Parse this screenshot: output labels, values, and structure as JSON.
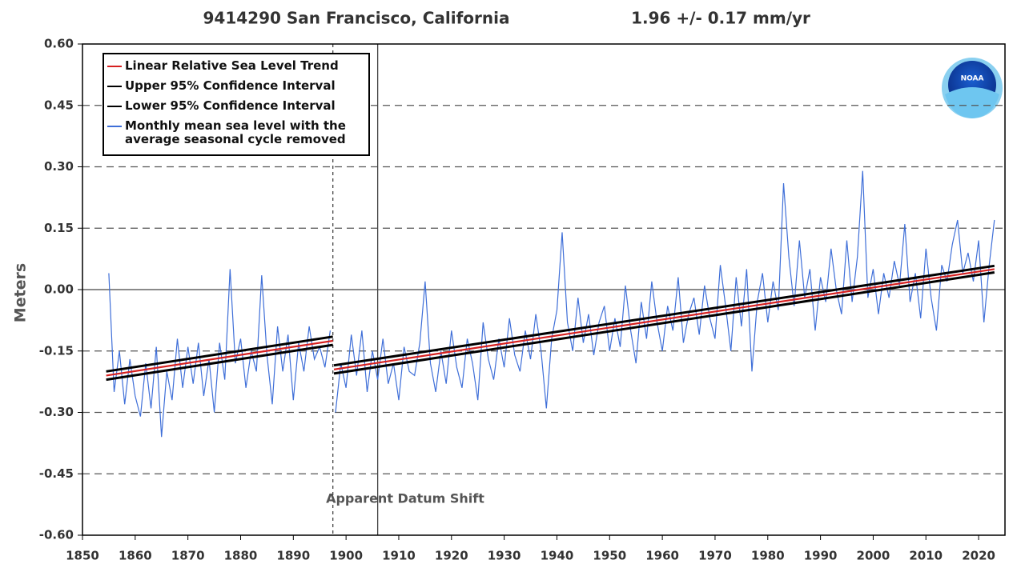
{
  "chart_data": {
    "type": "line",
    "title": "9414290 San Francisco, California",
    "subtitle": "1.96 +/-  0.17 mm/yr",
    "ylabel": "Meters",
    "logo": "NOAA",
    "annotation": "Apparent Datum Shift",
    "xlim": [
      1850,
      2025
    ],
    "ylim": [
      -0.6,
      0.6
    ],
    "xticks": [
      1850,
      1860,
      1870,
      1880,
      1890,
      1900,
      1910,
      1920,
      1930,
      1940,
      1950,
      1960,
      1970,
      1980,
      1990,
      2000,
      2010,
      2020
    ],
    "yticks": [
      {
        "value": 0.6,
        "label": "0.60"
      },
      {
        "value": 0.45,
        "label": "0.45"
      },
      {
        "value": 0.3,
        "label": "0.30"
      },
      {
        "value": 0.15,
        "label": "0.15"
      },
      {
        "value": 0,
        "label": "0.00"
      },
      {
        "value": -0.15,
        "label": "-0.15"
      },
      {
        "value": -0.3,
        "label": "-0.30"
      },
      {
        "value": -0.45,
        "label": "-0.45"
      },
      {
        "value": -0.6,
        "label": "-0.60"
      }
    ],
    "grid": true,
    "legend": "upper left",
    "reference_lines": [
      {
        "x": 1897.5,
        "dashed": true
      },
      {
        "x": 1906,
        "dashed": false
      }
    ],
    "series": [
      {
        "name": "Linear Relative Sea Level Trend",
        "color": "#d62020",
        "x": [
          1854.5,
          1897.5,
          1897.6,
          1897.7,
          2023
        ],
        "values": [
          -0.21,
          -0.125,
          null,
          -0.195,
          0.05
        ]
      },
      {
        "name": "Upper 95% Confidence Interval",
        "color": "#000000",
        "x": [
          1854.5,
          1897.5,
          1897.6,
          1897.7,
          2023
        ],
        "values": [
          -0.2,
          -0.115,
          null,
          -0.185,
          0.058
        ]
      },
      {
        "name": "Lower 95% Confidence Interval",
        "color": "#000000",
        "x": [
          1854.5,
          1897.5,
          1897.6,
          1897.7,
          2023
        ],
        "values": [
          -0.22,
          -0.135,
          null,
          -0.205,
          0.042
        ]
      },
      {
        "name": "Monthly mean sea level with the average seasonal cycle removed",
        "color": "#3f6fd8",
        "x": [
          1855,
          1856,
          1857,
          1858,
          1859,
          1860,
          1861,
          1862,
          1863,
          1864,
          1865,
          1866,
          1867,
          1868,
          1869,
          1870,
          1871,
          1872,
          1873,
          1874,
          1875,
          1876,
          1877,
          1878,
          1879,
          1880,
          1881,
          1882,
          1883,
          1884,
          1885,
          1886,
          1887,
          1888,
          1889,
          1890,
          1891,
          1892,
          1893,
          1894,
          1895,
          1896,
          1897,
          1897.6,
          1898,
          1899,
          1900,
          1901,
          1902,
          1903,
          1904,
          1905,
          1906,
          1907,
          1908,
          1909,
          1910,
          1911,
          1912,
          1913,
          1914,
          1915,
          1916,
          1917,
          1918,
          1919,
          1920,
          1921,
          1922,
          1923,
          1924,
          1925,
          1926,
          1927,
          1928,
          1929,
          1930,
          1931,
          1932,
          1933,
          1934,
          1935,
          1936,
          1937,
          1938,
          1939,
          1940,
          1941,
          1942,
          1943,
          1944,
          1945,
          1946,
          1947,
          1948,
          1949,
          1950,
          1951,
          1952,
          1953,
          1954,
          1955,
          1956,
          1957,
          1958,
          1959,
          1960,
          1961,
          1962,
          1963,
          1964,
          1965,
          1966,
          1967,
          1968,
          1969,
          1970,
          1971,
          1972,
          1973,
          1974,
          1975,
          1976,
          1977,
          1978,
          1979,
          1980,
          1981,
          1982,
          1983,
          1984,
          1985,
          1986,
          1987,
          1988,
          1989,
          1990,
          1991,
          1992,
          1993,
          1994,
          1995,
          1996,
          1997,
          1998,
          1999,
          2000,
          2001,
          2002,
          2003,
          2004,
          2005,
          2006,
          2007,
          2008,
          2009,
          2010,
          2011,
          2012,
          2013,
          2014,
          2015,
          2016,
          2017,
          2018,
          2019,
          2020,
          2021,
          2022,
          2023
        ],
        "values": [
          0.04,
          -0.25,
          -0.15,
          -0.28,
          -0.17,
          -0.26,
          -0.31,
          -0.18,
          -0.29,
          -0.14,
          -0.36,
          -0.2,
          -0.27,
          -0.12,
          -0.24,
          -0.14,
          -0.23,
          -0.13,
          -0.26,
          -0.17,
          -0.3,
          -0.13,
          -0.22,
          0.05,
          -0.18,
          -0.12,
          -0.24,
          -0.15,
          -0.2,
          0.035,
          -0.16,
          -0.28,
          -0.09,
          -0.2,
          -0.11,
          -0.27,
          -0.13,
          -0.2,
          -0.09,
          -0.17,
          -0.14,
          -0.19,
          -0.1,
          null,
          -0.3,
          -0.18,
          -0.24,
          -0.11,
          -0.21,
          -0.1,
          -0.25,
          -0.15,
          -0.22,
          -0.12,
          -0.23,
          -0.18,
          -0.27,
          -0.14,
          -0.2,
          -0.21,
          -0.13,
          0.02,
          -0.18,
          -0.25,
          -0.15,
          -0.23,
          -0.1,
          -0.19,
          -0.24,
          -0.12,
          -0.18,
          -0.27,
          -0.08,
          -0.17,
          -0.22,
          -0.12,
          -0.19,
          -0.07,
          -0.16,
          -0.2,
          -0.1,
          -0.17,
          -0.06,
          -0.15,
          -0.29,
          -0.12,
          -0.05,
          0.14,
          -0.08,
          -0.15,
          -0.02,
          -0.13,
          -0.06,
          -0.16,
          -0.08,
          -0.04,
          -0.15,
          -0.07,
          -0.14,
          0.01,
          -0.1,
          -0.18,
          -0.03,
          -0.12,
          0.02,
          -0.08,
          -0.15,
          -0.04,
          -0.1,
          0.03,
          -0.13,
          -0.06,
          -0.02,
          -0.11,
          0.01,
          -0.07,
          -0.12,
          0.06,
          -0.04,
          -0.15,
          0.03,
          -0.09,
          0.05,
          -0.2,
          -0.03,
          0.04,
          -0.08,
          0.02,
          -0.05,
          0.26,
          0.08,
          -0.04,
          0.12,
          -0.02,
          0.05,
          -0.1,
          0.03,
          -0.03,
          0.1,
          0.0,
          -0.06,
          0.12,
          -0.03,
          0.08,
          0.29,
          -0.02,
          0.05,
          -0.06,
          0.04,
          -0.02,
          0.07,
          0.01,
          0.16,
          -0.03,
          0.04,
          -0.07,
          0.1,
          -0.02,
          -0.1,
          0.06,
          0.02,
          0.11,
          0.17,
          0.04,
          0.09,
          0.02,
          0.12,
          -0.08,
          0.06,
          0.17
        ]
      }
    ]
  }
}
